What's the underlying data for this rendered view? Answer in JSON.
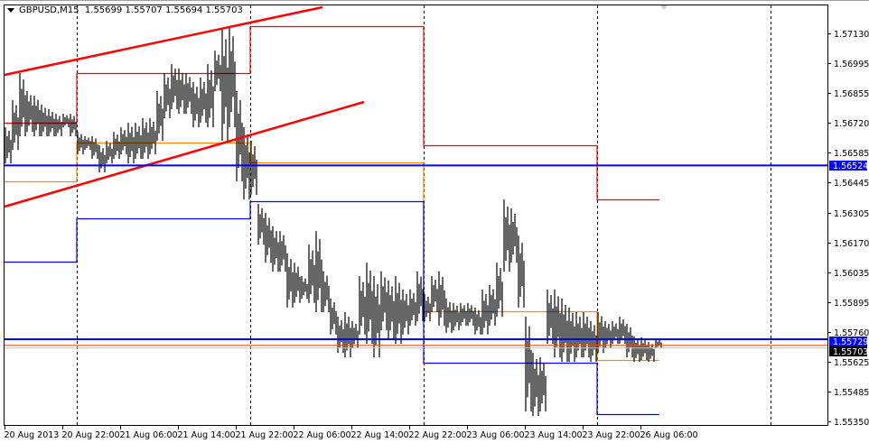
{
  "header": {
    "symbol": "GBPUSD,M15",
    "ohlc": "1.55699 1.55707 1.55694 1.55703"
  },
  "colors": {
    "bars": "#000000",
    "daily_high": "#ff0000",
    "daily_mid": "#ff8c00",
    "daily_low": "#0000ff",
    "channel": "#ff0000",
    "hline": "#0000ff",
    "bid_line": "#ff4500",
    "grid": "#000000"
  },
  "chart_data": {
    "type": "ohlc-bar",
    "symbol": "GBPUSD",
    "timeframe": "M15",
    "ylim": [
      1.5533,
      1.5729
    ],
    "y_ticks": [
      "1.57130",
      "1.56995",
      "1.56855",
      "1.56720",
      "1.56585",
      "1.56445",
      "1.56305",
      "1.56170",
      "1.56035",
      "1.55895",
      "1.55760",
      "1.55625",
      "1.55485",
      "1.55350"
    ],
    "x_ticks": [
      "20 Aug 2013",
      "20 Aug 22:00",
      "21 Aug 06:00",
      "21 Aug 14:00",
      "21 Aug 22:00",
      "22 Aug 06:00",
      "22 Aug 14:00",
      "22 Aug 22:00",
      "23 Aug 06:00",
      "23 Aug 14:00",
      "23 Aug 22:00",
      "26 Aug 06:00"
    ],
    "price_labels": {
      "hline_upper": "1.56524",
      "hline_lower": "1.55729",
      "bid": "1.55703"
    },
    "hline_values": {
      "upper": 1.56524,
      "lower": 1.55729,
      "bid": 1.55703
    },
    "hourly_high_low": [
      [
        1.56699,
        1.56534
      ],
      [
        1.56824,
        1.56595
      ],
      [
        1.56948,
        1.56658
      ],
      [
        1.56865,
        1.56678
      ],
      [
        1.56844,
        1.56658
      ],
      [
        1.56803,
        1.56658
      ],
      [
        1.56782,
        1.56658
      ],
      [
        1.56761,
        1.56658
      ],
      [
        1.56761,
        1.56699
      ],
      [
        1.56761,
        1.56658
      ],
      [
        1.56678,
        1.56575
      ],
      [
        1.56658,
        1.56595
      ],
      [
        1.56658,
        1.56554
      ],
      [
        1.56616,
        1.56492
      ],
      [
        1.56637,
        1.56534
      ],
      [
        1.56678,
        1.56554
      ],
      [
        1.56699,
        1.56575
      ],
      [
        1.5672,
        1.56534
      ],
      [
        1.5672,
        1.56554
      ],
      [
        1.56741,
        1.56554
      ],
      [
        1.56741,
        1.56575
      ],
      [
        1.56865,
        1.56637
      ],
      [
        1.56948,
        1.56741
      ],
      [
        1.56989,
        1.56782
      ],
      [
        1.56969,
        1.56761
      ],
      [
        1.56948,
        1.56761
      ],
      [
        1.56906,
        1.56699
      ],
      [
        1.56927,
        1.5672
      ],
      [
        1.56989,
        1.56699
      ],
      [
        1.57051,
        1.56865
      ],
      [
        1.57155,
        1.56637
      ],
      [
        1.57163,
        1.56699
      ],
      [
        1.56865,
        1.56451
      ],
      [
        1.56699,
        1.56368
      ],
      [
        1.56637,
        1.56389
      ],
      [
        1.56347,
        1.56161
      ],
      [
        1.56306,
        1.56078
      ],
      [
        1.56244,
        1.56037
      ],
      [
        1.56223,
        1.56037
      ],
      [
        1.5612,
        1.55872
      ],
      [
        1.56078,
        1.55893
      ],
      [
        1.56016,
        1.55913
      ],
      [
        1.56161,
        1.55893
      ],
      [
        1.56223,
        1.55851
      ],
      [
        1.56037,
        1.55851
      ],
      [
        1.55913,
        1.55748
      ],
      [
        1.5583,
        1.55664
      ],
      [
        1.55851,
        1.55644
      ],
      [
        1.5581,
        1.55685
      ],
      [
        1.56016,
        1.55748
      ],
      [
        1.56078,
        1.55706
      ],
      [
        1.56016,
        1.55644
      ],
      [
        1.56037,
        1.55768
      ],
      [
        1.55996,
        1.55727
      ],
      [
        1.56016,
        1.55706
      ],
      [
        1.55955,
        1.55748
      ],
      [
        1.55955,
        1.55789
      ],
      [
        1.56037,
        1.5581
      ],
      [
        1.55934,
        1.5581
      ],
      [
        1.56016,
        1.55851
      ],
      [
        1.56037,
        1.55789
      ],
      [
        1.55913,
        1.55756
      ],
      [
        1.55893,
        1.55768
      ],
      [
        1.55893,
        1.55789
      ],
      [
        1.55893,
        1.55789
      ],
      [
        1.55872,
        1.55748
      ],
      [
        1.55955,
        1.55748
      ],
      [
        1.55975,
        1.55789
      ],
      [
        1.56078,
        1.5583
      ],
      [
        1.56368,
        1.56037
      ],
      [
        1.56327,
        1.56078
      ],
      [
        1.56202,
        1.55872
      ],
      [
        1.5583,
        1.55395
      ],
      [
        1.55664,
        1.55375
      ],
      [
        1.55644,
        1.55395
      ],
      [
        1.55955,
        1.55706
      ],
      [
        1.55955,
        1.55644
      ],
      [
        1.55913,
        1.55623
      ],
      [
        1.55872,
        1.55623
      ],
      [
        1.55851,
        1.55644
      ],
      [
        1.55851,
        1.55644
      ],
      [
        1.5581,
        1.55623
      ],
      [
        1.55851,
        1.55664
      ],
      [
        1.5581,
        1.55685
      ],
      [
        1.5581,
        1.55706
      ],
      [
        1.5583,
        1.55706
      ],
      [
        1.55797,
        1.55644
      ],
      [
        1.55739,
        1.55623
      ],
      [
        1.55735,
        1.55631
      ],
      [
        1.55714,
        1.55623
      ],
      [
        1.55727,
        1.55685
      ]
    ],
    "daily_levels": {
      "high": [
        1.5672,
        1.56948,
        1.57163,
        1.56616,
        1.56368
      ],
      "mid": [
        1.56451,
        1.56629,
        1.56538,
        1.55855,
        1.55631
      ],
      "low": [
        1.56083,
        1.56281,
        1.5636,
        1.55619,
        1.55383
      ]
    }
  }
}
